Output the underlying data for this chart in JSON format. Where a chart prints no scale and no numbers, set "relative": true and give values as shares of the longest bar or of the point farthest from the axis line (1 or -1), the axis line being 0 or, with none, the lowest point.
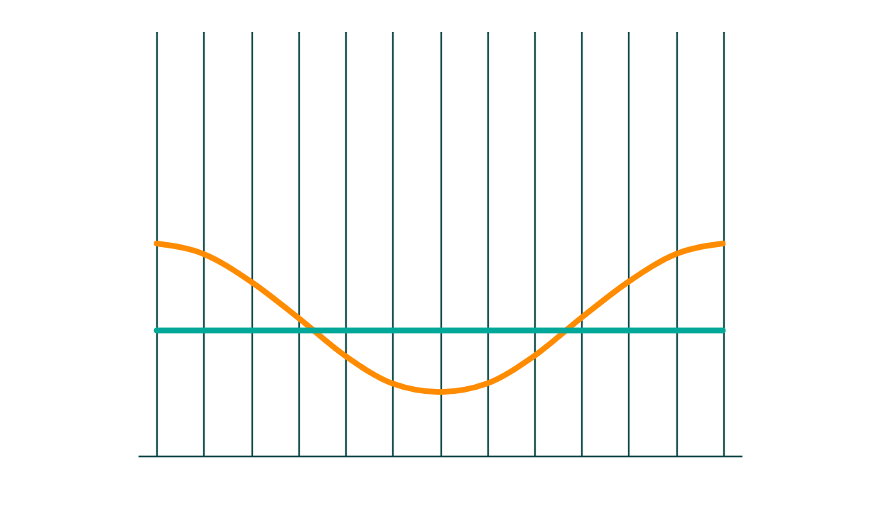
{
  "chart_data": {
    "type": "line",
    "relative": true,
    "grid": "x",
    "marker": "none",
    "line_style": "solid",
    "categories": [
      null,
      null,
      null,
      null,
      null,
      null,
      null,
      null,
      null,
      null,
      null,
      null,
      null
    ],
    "series": [
      {
        "color": "#ff8c00",
        "values": [
          1,
          0.95,
          0.82,
          0.65,
          0.47,
          0.34,
          0.3,
          0.34,
          0.47,
          0.65,
          0.82,
          0.95,
          1
        ]
      },
      {
        "color": "#00a89a",
        "values": [
          0.59,
          0.59,
          0.59,
          0.59,
          0.59,
          0.59,
          0.59,
          0.59,
          0.59,
          0.59,
          0.59,
          0.59,
          0.59
        ]
      }
    ]
  }
}
